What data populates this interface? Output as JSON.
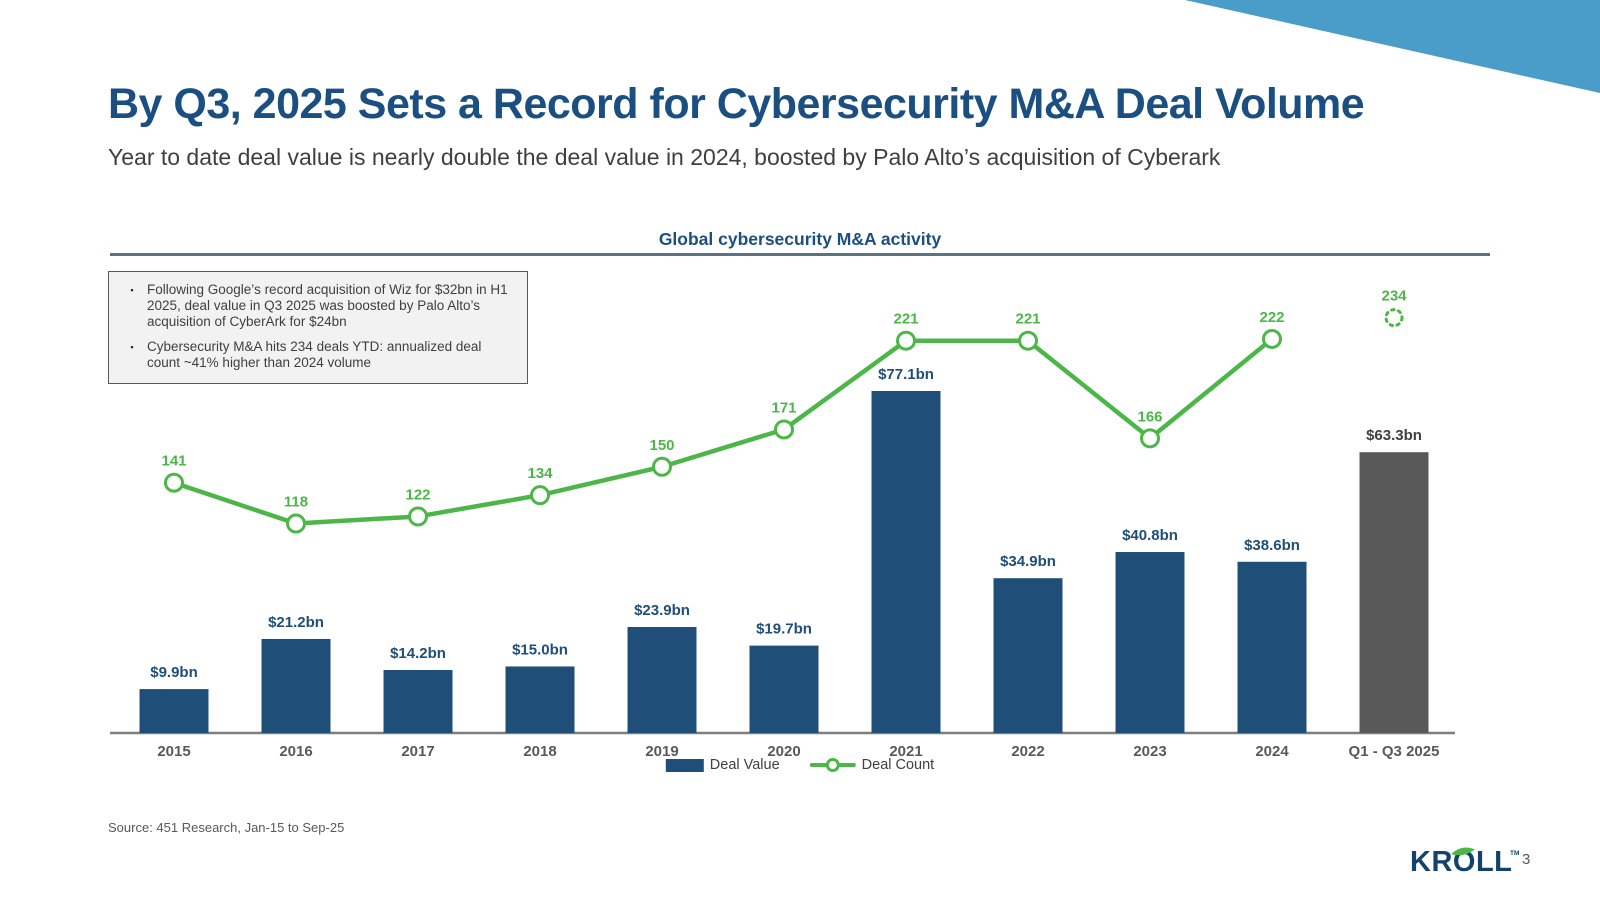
{
  "slide": {
    "title": "By Q3, 2025 Sets a Record for Cybersecurity M&A Deal Volume",
    "subtitle": "Year to date deal value is nearly double the deal value in 2024, boosted by Palo Alto’s acquisition of Cyberark",
    "source": "Source: 451 Research, Jan-15 to Sep-25",
    "page_number": "3",
    "logo_text": "KROLL",
    "logo_tm": "TM"
  },
  "notes": {
    "items": [
      {
        "bullet": "▪",
        "text": "Following Google’s record acquisition of Wiz for $32bn in H1 2025, deal value in Q3 2025 was boosted by Palo Alto’s acquisition of CyberArk for $24bn"
      },
      {
        "bullet": "▪",
        "text": "Cybersecurity M&A hits 234 deals YTD: annualized deal count ~41% higher than 2024 volume"
      }
    ]
  },
  "chart_data": {
    "type": "bar",
    "subtype": "bar+line combo",
    "title": "Global cybersecurity M&A activity",
    "categories": [
      "2015",
      "2016",
      "2017",
      "2018",
      "2019",
      "2020",
      "2021",
      "2022",
      "2023",
      "2024",
      "Q1 - Q3 2025"
    ],
    "series": [
      {
        "name": "Deal Value",
        "type": "bar",
        "unit": "USD bn",
        "values": [
          9.9,
          21.2,
          14.2,
          15.0,
          23.9,
          19.7,
          77.1,
          34.9,
          40.8,
          38.6,
          63.3
        ],
        "value_labels": [
          "$9.9bn",
          "$21.2bn",
          "$14.2bn",
          "$15.0bn",
          "$23.9bn",
          "$19.7bn",
          "$77.1bn",
          "$34.9bn",
          "$40.8bn",
          "$38.6bn",
          "$63.3bn"
        ]
      },
      {
        "name": "Deal Count",
        "type": "line",
        "values": [
          141,
          118,
          122,
          134,
          150,
          171,
          221,
          221,
          166,
          222,
          234
        ],
        "last_point_style": "dotted-open-circle-not-connected"
      }
    ],
    "legend": [
      "Deal Value",
      "Deal Count"
    ],
    "legend_position": "bottom-center",
    "grid": false,
    "y_axis_shown": false,
    "colors": {
      "bar": "#1F4E79",
      "bar_final": "#595959",
      "bar_label": "#1F4E79",
      "bar_label_final": "#404040",
      "line": "#4CB748",
      "axis": "#7f7f7f",
      "category_label": "#595959",
      "title_navy": "#1B4F82",
      "corner_triangle": "#4A9CC9"
    }
  }
}
